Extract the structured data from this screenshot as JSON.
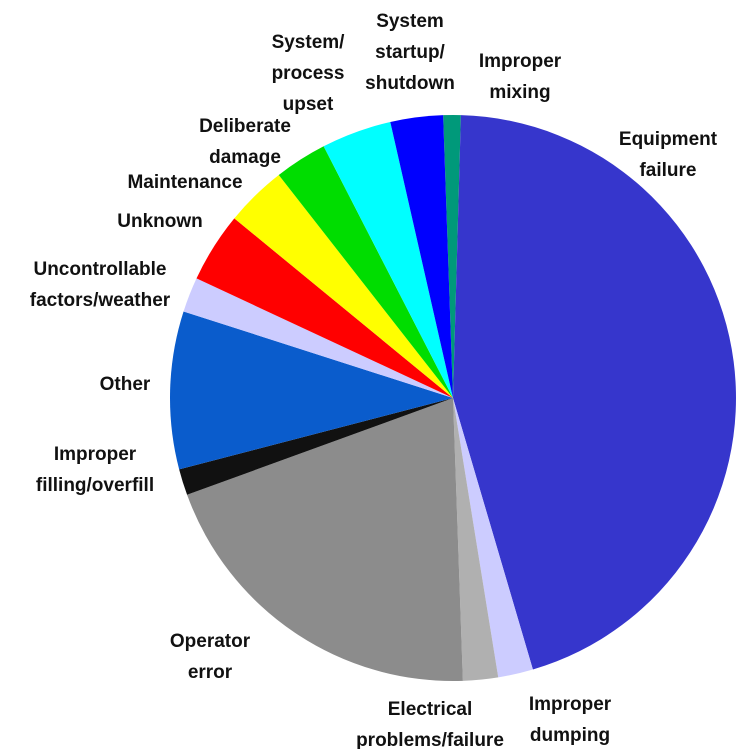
{
  "chart_data": {
    "type": "pie",
    "categories": [
      "Improper\nmixing",
      "Equipment\nfailure",
      "Improper\ndumping",
      "Electrical\nproblems/failure",
      "Operator\nerror",
      "Improper\nfilling/overfill",
      "Other",
      "Uncontrollable\nfactors/weather",
      "Unknown",
      "Maintenance",
      "Deliberate\ndamage",
      "System/\nprocess\nupset",
      "System\nstartup/\nshutdown"
    ],
    "values": [
      1,
      45,
      2,
      2,
      20,
      1.5,
      9,
      2,
      4,
      3.5,
      3,
      4,
      3
    ],
    "colors": [
      "#00997a",
      "#3636cc",
      "#ccccff",
      "#b0b0b0",
      "#8c8c8c",
      "#111111",
      "#0a5ccc",
      "#ccccff",
      "#ff0000",
      "#ffff00",
      "#00dd00",
      "#00ffff",
      "#0000ff"
    ]
  }
}
